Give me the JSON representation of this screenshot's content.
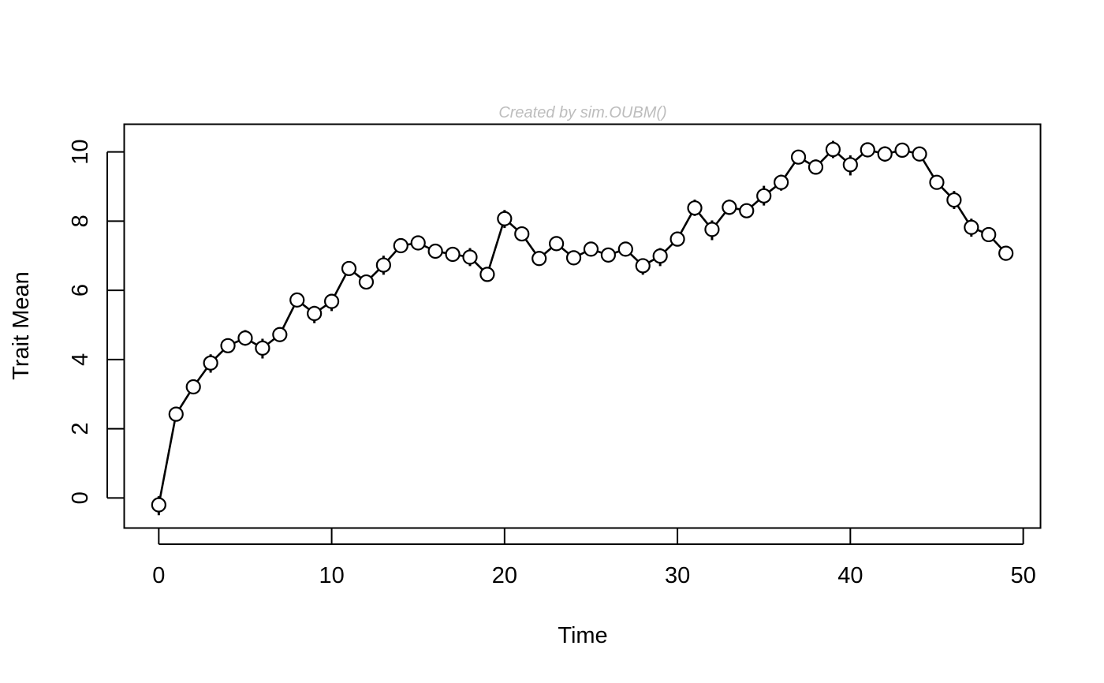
{
  "chart_data": {
    "type": "line",
    "title": "",
    "subtitle": "Created by sim.OUBM()",
    "xlabel": "Time",
    "ylabel": "Trait Mean",
    "xlim": [
      -2,
      51
    ],
    "ylim": [
      -0.87,
      10.8
    ],
    "xticks": [
      0,
      10,
      20,
      30,
      40,
      50
    ],
    "yticks": [
      0,
      2,
      4,
      6,
      8,
      10
    ],
    "grid": false,
    "legend": "none",
    "line_color": "#000000",
    "marker_fill": "#ffffff",
    "marker_stroke": "#000000",
    "series": [
      {
        "x": [
          0,
          1,
          2,
          3,
          4,
          5,
          6,
          7,
          8,
          9,
          10,
          11,
          12,
          13,
          14,
          15,
          16,
          17,
          18,
          19,
          20,
          21,
          22,
          23,
          24,
          25,
          26,
          27,
          28,
          29,
          30,
          31,
          32,
          33,
          34,
          35,
          36,
          37,
          38,
          39,
          40,
          41,
          42,
          43,
          44,
          45,
          46,
          47,
          48,
          49
        ],
        "y": [
          -0.2,
          2.42,
          3.21,
          3.9,
          4.4,
          4.62,
          4.33,
          4.72,
          5.72,
          5.33,
          5.68,
          6.63,
          6.24,
          6.73,
          7.29,
          7.37,
          7.13,
          7.04,
          6.96,
          6.46,
          8.07,
          7.63,
          6.92,
          7.35,
          6.94,
          7.19,
          7.02,
          7.19,
          6.71,
          6.99,
          7.48,
          8.38,
          7.76,
          8.4,
          8.3,
          8.73,
          9.12,
          9.85,
          9.56,
          10.07,
          9.63,
          10.06,
          9.94,
          10.05,
          9.94,
          9.12,
          8.61,
          7.82,
          7.61,
          7.07
        ],
        "y_low": [
          -0.5,
          2.22,
          3.01,
          3.62,
          4.25,
          4.4,
          4.03,
          4.52,
          5.55,
          5.05,
          5.4,
          6.45,
          6.04,
          6.45,
          7.1,
          7.2,
          6.95,
          6.88,
          6.7,
          6.3,
          7.8,
          7.45,
          6.75,
          7.15,
          6.78,
          7.02,
          6.85,
          7.02,
          6.45,
          6.7,
          7.28,
          8.15,
          7.45,
          8.18,
          8.1,
          8.45,
          8.88,
          9.68,
          9.35,
          9.82,
          9.32,
          9.86,
          9.72,
          9.86,
          9.75,
          8.95,
          8.35,
          7.55,
          7.42,
          6.9
        ],
        "y_high": [
          0.05,
          2.62,
          3.4,
          4.15,
          4.52,
          4.85,
          4.6,
          4.92,
          5.88,
          5.55,
          5.9,
          6.82,
          6.42,
          7.0,
          7.48,
          7.54,
          7.3,
          7.2,
          7.22,
          6.62,
          8.32,
          7.8,
          7.1,
          7.55,
          7.1,
          7.36,
          7.2,
          7.36,
          6.9,
          7.22,
          7.68,
          8.62,
          8.02,
          8.62,
          8.5,
          9.02,
          9.34,
          10.02,
          9.78,
          10.32,
          9.9,
          10.26,
          10.16,
          10.24,
          10.12,
          9.3,
          8.87,
          8.07,
          7.8,
          7.25
        ]
      }
    ]
  }
}
